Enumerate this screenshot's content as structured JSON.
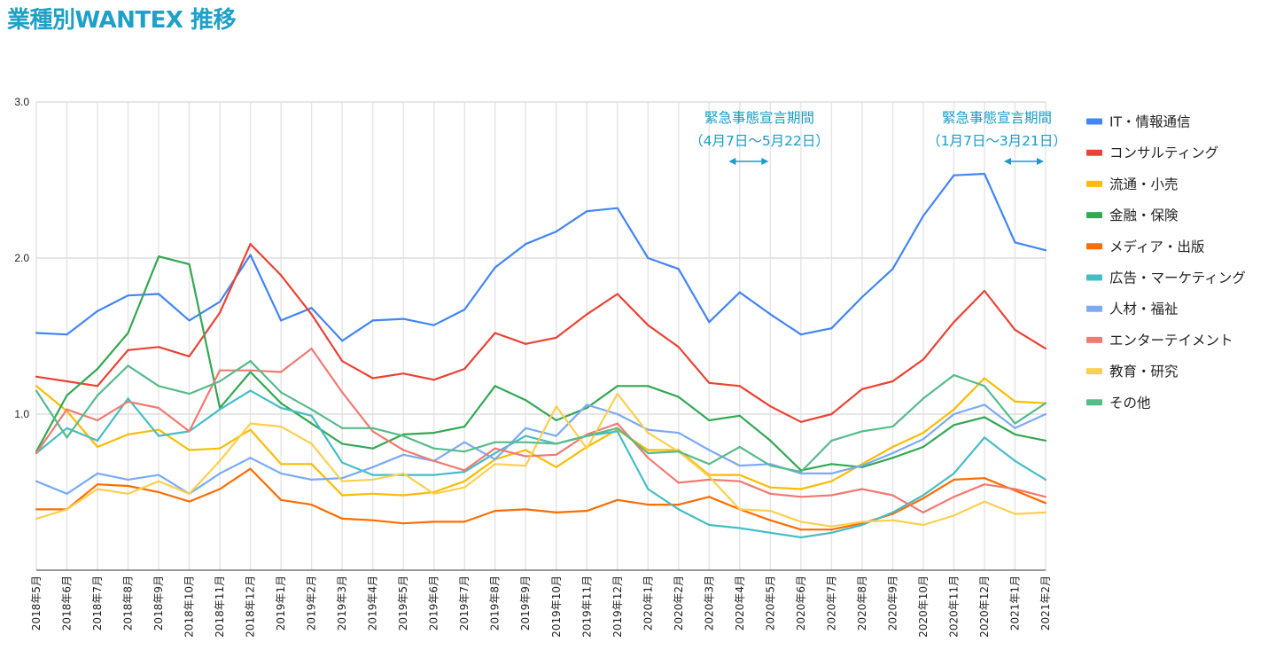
{
  "page_title": "業種別WANTEX 推移",
  "chart_data": {
    "type": "line",
    "title": "業種別WANTEX 推移",
    "xlabel": "",
    "ylabel": "",
    "ylim": [
      0,
      3.0
    ],
    "yticks": [
      "1.0",
      "2.0",
      "3.0"
    ],
    "ytick_values": [
      1.0,
      2.0,
      3.0
    ],
    "grid": true,
    "legend_position": "right",
    "categories": [
      "2018年5月",
      "2018年6月",
      "2018年7月",
      "2018年8月",
      "2018年9月",
      "2018年10月",
      "2018年11月",
      "2018年12月",
      "2019年1月",
      "2019年2月",
      "2019年3月",
      "2019年4月",
      "2019年5月",
      "2019年6月",
      "2019年7月",
      "2019年8月",
      "2019年9月",
      "2019年10月",
      "2019年11月",
      "2019年12月",
      "2020年1月",
      "2020年2月",
      "2020年3月",
      "2020年4月",
      "2020年5月",
      "2020年6月",
      "2020年7月",
      "2020年8月",
      "2020年9月",
      "2020年10月",
      "2020年11月",
      "2020年12月",
      "2021年1月",
      "2021年2月"
    ],
    "series": [
      {
        "name": "IT・情報通信",
        "color": "#4285f4",
        "values": [
          1.52,
          1.51,
          1.66,
          1.76,
          1.77,
          1.6,
          1.72,
          2.02,
          1.6,
          1.68,
          1.47,
          1.6,
          1.61,
          1.57,
          1.67,
          1.94,
          2.09,
          2.17,
          2.3,
          2.32,
          2.0,
          1.93,
          1.59,
          1.78,
          1.64,
          1.51,
          1.55,
          1.75,
          1.93,
          2.27,
          2.53,
          2.54,
          2.1,
          2.05
        ]
      },
      {
        "name": "コンサルティング",
        "color": "#ea4335",
        "values": [
          1.24,
          1.21,
          1.18,
          1.41,
          1.43,
          1.37,
          1.65,
          2.09,
          1.89,
          1.64,
          1.34,
          1.23,
          1.26,
          1.22,
          1.29,
          1.52,
          1.45,
          1.49,
          1.64,
          1.77,
          1.57,
          1.43,
          1.2,
          1.18,
          1.05,
          0.95,
          1.0,
          1.16,
          1.21,
          1.35,
          1.59,
          1.79,
          1.54,
          1.42
        ]
      },
      {
        "name": "流通・小売",
        "color": "#fbbc04",
        "values": [
          1.18,
          1.02,
          0.79,
          0.87,
          0.9,
          0.77,
          0.78,
          0.9,
          0.68,
          0.68,
          0.48,
          0.49,
          0.48,
          0.5,
          0.57,
          0.71,
          0.77,
          0.66,
          0.79,
          0.9,
          0.77,
          0.77,
          0.61,
          0.61,
          0.53,
          0.52,
          0.57,
          0.68,
          0.79,
          0.88,
          1.03,
          1.23,
          1.08,
          1.07
        ]
      },
      {
        "name": "金融・保険",
        "color": "#34a853",
        "values": [
          0.76,
          1.12,
          1.29,
          1.52,
          2.01,
          1.96,
          1.04,
          1.27,
          1.07,
          0.94,
          0.81,
          0.78,
          0.87,
          0.88,
          0.92,
          1.18,
          1.09,
          0.96,
          1.04,
          1.18,
          1.18,
          1.11,
          0.96,
          0.99,
          0.83,
          0.64,
          0.68,
          0.66,
          0.72,
          0.79,
          0.93,
          0.98,
          0.87,
          0.83
        ]
      },
      {
        "name": "メディア・出版",
        "color": "#ff6d01",
        "values": [
          0.39,
          0.39,
          0.55,
          0.54,
          0.5,
          0.44,
          0.52,
          0.65,
          0.45,
          0.42,
          0.33,
          0.32,
          0.3,
          0.31,
          0.31,
          0.38,
          0.39,
          0.37,
          0.38,
          0.45,
          0.42,
          0.42,
          0.47,
          0.39,
          0.32,
          0.26,
          0.26,
          0.3,
          0.36,
          0.46,
          0.58,
          0.59,
          0.51,
          0.43
        ]
      },
      {
        "name": "広告・マーケティング",
        "color": "#46bdc6",
        "values": [
          0.75,
          0.91,
          0.83,
          1.1,
          0.86,
          0.89,
          1.03,
          1.15,
          1.04,
          0.99,
          0.69,
          0.61,
          0.61,
          0.61,
          0.63,
          0.75,
          0.86,
          0.81,
          0.86,
          0.89,
          0.52,
          0.39,
          0.29,
          0.27,
          0.24,
          0.21,
          0.24,
          0.29,
          0.37,
          0.48,
          0.62,
          0.85,
          0.7,
          0.58
        ]
      },
      {
        "name": "人材・福祉",
        "color": "#7baaf7",
        "values": [
          0.57,
          0.49,
          0.62,
          0.58,
          0.61,
          0.49,
          0.62,
          0.72,
          0.62,
          0.58,
          0.59,
          0.66,
          0.74,
          0.7,
          0.82,
          0.71,
          0.91,
          0.86,
          1.06,
          1.0,
          0.9,
          0.88,
          0.77,
          0.67,
          0.68,
          0.62,
          0.62,
          0.67,
          0.75,
          0.84,
          1.0,
          1.06,
          0.91,
          1.0
        ]
      },
      {
        "name": "エンターテイメント",
        "color": "#f07b72",
        "values": [
          0.75,
          1.03,
          0.96,
          1.08,
          1.04,
          0.89,
          1.28,
          1.28,
          1.27,
          1.42,
          1.14,
          0.89,
          0.77,
          0.7,
          0.64,
          0.78,
          0.73,
          0.74,
          0.87,
          0.94,
          0.72,
          0.56,
          0.58,
          0.57,
          0.49,
          0.47,
          0.48,
          0.52,
          0.48,
          0.37,
          0.47,
          0.55,
          0.52,
          0.47
        ]
      },
      {
        "name": "教育・研究",
        "color": "#fcd04f",
        "values": [
          0.33,
          0.39,
          0.52,
          0.49,
          0.57,
          0.49,
          0.7,
          0.94,
          0.92,
          0.81,
          0.57,
          0.58,
          0.62,
          0.49,
          0.53,
          0.68,
          0.67,
          1.05,
          0.78,
          1.13,
          0.88,
          0.76,
          0.6,
          0.39,
          0.38,
          0.31,
          0.28,
          0.31,
          0.32,
          0.29,
          0.35,
          0.44,
          0.36,
          0.37
        ]
      },
      {
        "name": "その他",
        "color": "#57bb8a",
        "values": [
          1.15,
          0.85,
          1.12,
          1.31,
          1.18,
          1.13,
          1.21,
          1.34,
          1.14,
          1.03,
          0.91,
          0.91,
          0.86,
          0.78,
          0.76,
          0.82,
          0.82,
          0.81,
          0.86,
          0.91,
          0.75,
          0.76,
          0.68,
          0.79,
          0.67,
          0.63,
          0.83,
          0.89,
          0.92,
          1.1,
          1.25,
          1.18,
          0.94,
          1.07
        ]
      }
    ],
    "annotations": [
      {
        "line1": "緊急事態宣言期間",
        "line2": "（4月7日〜5月22日）",
        "arrow_from": "2020年3月",
        "arrow_to": "2020年5月",
        "color": "#1a9cc6"
      },
      {
        "line1": "緊急事態宣言期間",
        "line2": "（1月7日〜3月21日）",
        "arrow_from": "2020年12月",
        "arrow_to": "2021年2月",
        "color": "#1a9cc6"
      }
    ]
  }
}
